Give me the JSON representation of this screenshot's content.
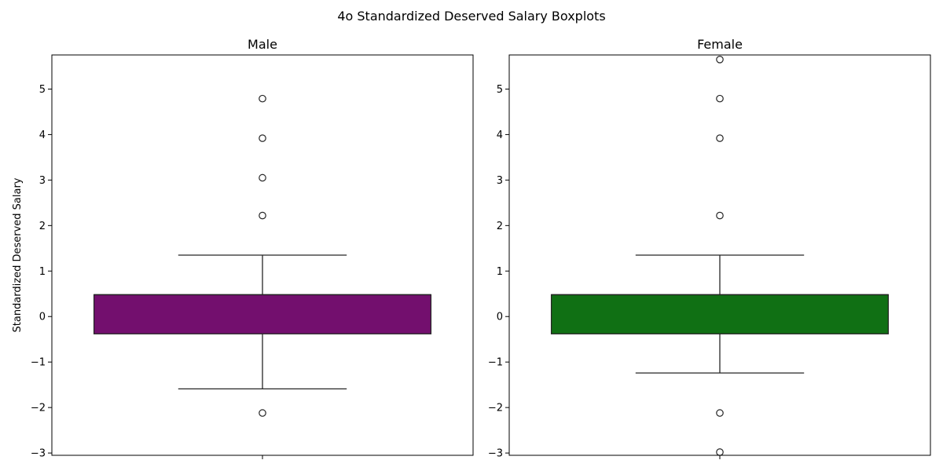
{
  "figure": {
    "title": "4o Standardized Deserved Salary Boxplots",
    "ylabel": "Standardized Deserved Salary"
  },
  "chart_data": [
    {
      "type": "box",
      "title": "Male",
      "ylabel": "Standardized Deserved Salary",
      "ylim": [
        -3.05,
        5.75
      ],
      "yticks": [
        -3,
        -2,
        -1,
        0,
        1,
        2,
        3,
        4,
        5
      ],
      "ytick_labels": [
        "−3",
        "−2",
        "−1",
        "0",
        "1",
        "2",
        "3",
        "4",
        "5"
      ],
      "color": "#730f6e",
      "box": {
        "q1": -0.38,
        "median": 0.48,
        "q3": 0.48,
        "whisker_low": -1.59,
        "whisker_high": 1.35
      },
      "outliers": [
        4.79,
        3.92,
        3.05,
        2.22,
        -2.12
      ]
    },
    {
      "type": "box",
      "title": "Female",
      "ylabel": "",
      "ylim": [
        -3.05,
        5.75
      ],
      "yticks": [
        -3,
        -2,
        -1,
        0,
        1,
        2,
        3,
        4,
        5
      ],
      "ytick_labels": [
        "−3",
        "−2",
        "−1",
        "0",
        "1",
        "2",
        "3",
        "4",
        "5"
      ],
      "color": "#107014",
      "box": {
        "q1": -0.38,
        "median": 0.48,
        "q3": 0.48,
        "whisker_low": -1.24,
        "whisker_high": 1.35
      },
      "outliers": [
        5.65,
        4.79,
        3.92,
        2.22,
        -2.12,
        -2.98
      ]
    }
  ]
}
